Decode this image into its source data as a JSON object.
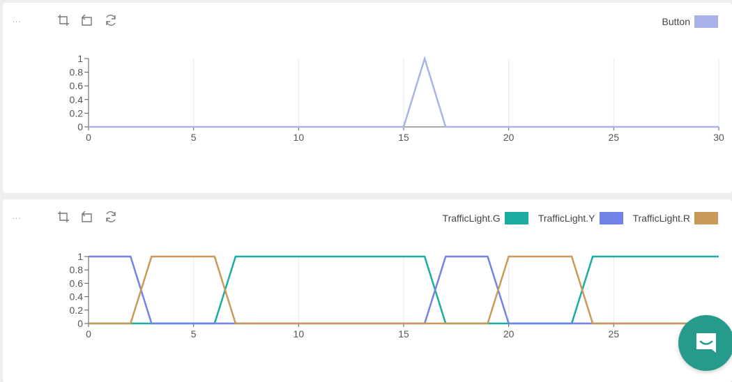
{
  "panels": [
    {
      "toolbar": {
        "more": "...",
        "icons": [
          "crop-icon",
          "undo-icon",
          "refresh-icon"
        ]
      },
      "chart_data": {
        "type": "line",
        "xlim": [
          0,
          30
        ],
        "ylim": [
          0,
          1
        ],
        "xticks": [
          "0",
          "5",
          "10",
          "15",
          "20",
          "25",
          "30"
        ],
        "yticks": [
          "0",
          "0.2",
          "0.4",
          "0.6",
          "0.8",
          "1"
        ],
        "grid": true,
        "legend_position": "top-right",
        "series": [
          {
            "name": "Button",
            "color": "#aab2ea",
            "x": [
              0,
              15,
              16,
              17,
              30
            ],
            "y": [
              0,
              0,
              1,
              0,
              0
            ]
          }
        ]
      }
    },
    {
      "toolbar": {
        "more": "...",
        "icons": [
          "crop-icon",
          "undo-icon",
          "refresh-icon"
        ]
      },
      "chart_data": {
        "type": "line",
        "xlim": [
          0,
          30
        ],
        "ylim": [
          0,
          1
        ],
        "xticks": [
          "0",
          "5",
          "10",
          "15",
          "20",
          "25"
        ],
        "yticks": [
          "0",
          "0.2",
          "0.4",
          "0.6",
          "0.8",
          "1"
        ],
        "grid": true,
        "legend_position": "top-right",
        "series": [
          {
            "name": "TrafficLight.G",
            "color": "#1aaba1",
            "x": [
              0,
              2,
              6,
              7,
              16,
              17,
              23,
              24,
              30
            ],
            "y": [
              0,
              0,
              0,
              1,
              1,
              0,
              0,
              1,
              1
            ]
          },
          {
            "name": "TrafficLight.Y",
            "color": "#7282e6",
            "x": [
              0,
              2,
              3,
              16,
              17,
              19,
              20,
              30
            ],
            "y": [
              1,
              1,
              0,
              0,
              1,
              1,
              0,
              0
            ]
          },
          {
            "name": "TrafficLight.R",
            "color": "#c99a57",
            "x": [
              0,
              2,
              3,
              6,
              7,
              19,
              20,
              23,
              24,
              30
            ],
            "y": [
              0,
              0,
              1,
              1,
              0,
              0,
              1,
              1,
              0,
              0
            ]
          }
        ]
      }
    }
  ]
}
